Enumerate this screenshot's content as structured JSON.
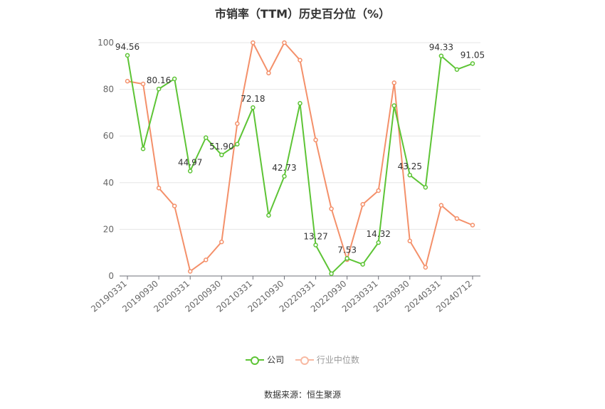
{
  "chart_data": {
    "type": "line",
    "title": "市销率（TTM）历史百分位（%）",
    "ylim": [
      0,
      100
    ],
    "yticks": [
      0,
      20,
      40,
      60,
      80,
      100
    ],
    "x_tick_labels": [
      "20190331",
      "20190930",
      "20200331",
      "20200930",
      "20210331",
      "20210930",
      "20220331",
      "20220930",
      "20230331",
      "20230930",
      "20240331",
      "20240712"
    ],
    "grid": true,
    "legend_position": "bottom",
    "series": [
      {
        "name": "公司",
        "color": "#5dc435",
        "values": [
          94.56,
          54.5,
          80.16,
          84.5,
          44.97,
          59.3,
          51.9,
          56.5,
          72.18,
          26.0,
          42.73,
          74.0,
          13.27,
          1.0,
          7.53,
          5.0,
          14.32,
          73.0,
          43.25,
          38.0,
          94.33,
          88.5,
          91.05
        ],
        "value_labels": [
          {
            "index": 0,
            "text": "94.56"
          },
          {
            "index": 2,
            "text": "80.16"
          },
          {
            "index": 4,
            "text": "44.97"
          },
          {
            "index": 6,
            "text": "51.90"
          },
          {
            "index": 8,
            "text": "72.18"
          },
          {
            "index": 10,
            "text": "42.73"
          },
          {
            "index": 12,
            "text": "13.27"
          },
          {
            "index": 14,
            "text": "7.53"
          },
          {
            "index": 16,
            "text": "14.32"
          },
          {
            "index": 18,
            "text": "43.25"
          },
          {
            "index": 20,
            "text": "94.33"
          },
          {
            "index": 22,
            "text": "91.05"
          }
        ]
      },
      {
        "name": "行业中位数",
        "color": "#f4906a",
        "values": [
          83.5,
          82.3,
          37.7,
          30.0,
          2.0,
          6.9,
          14.6,
          65.3,
          100.0,
          87.0,
          100.0,
          92.5,
          58.3,
          28.8,
          7.0,
          30.7,
          36.6,
          82.8,
          15.0,
          3.7,
          30.3,
          24.6,
          21.8
        ]
      }
    ]
  },
  "legend": {
    "company": "公司",
    "industry": "行业中位数"
  },
  "source": "数据来源：恒生聚源"
}
